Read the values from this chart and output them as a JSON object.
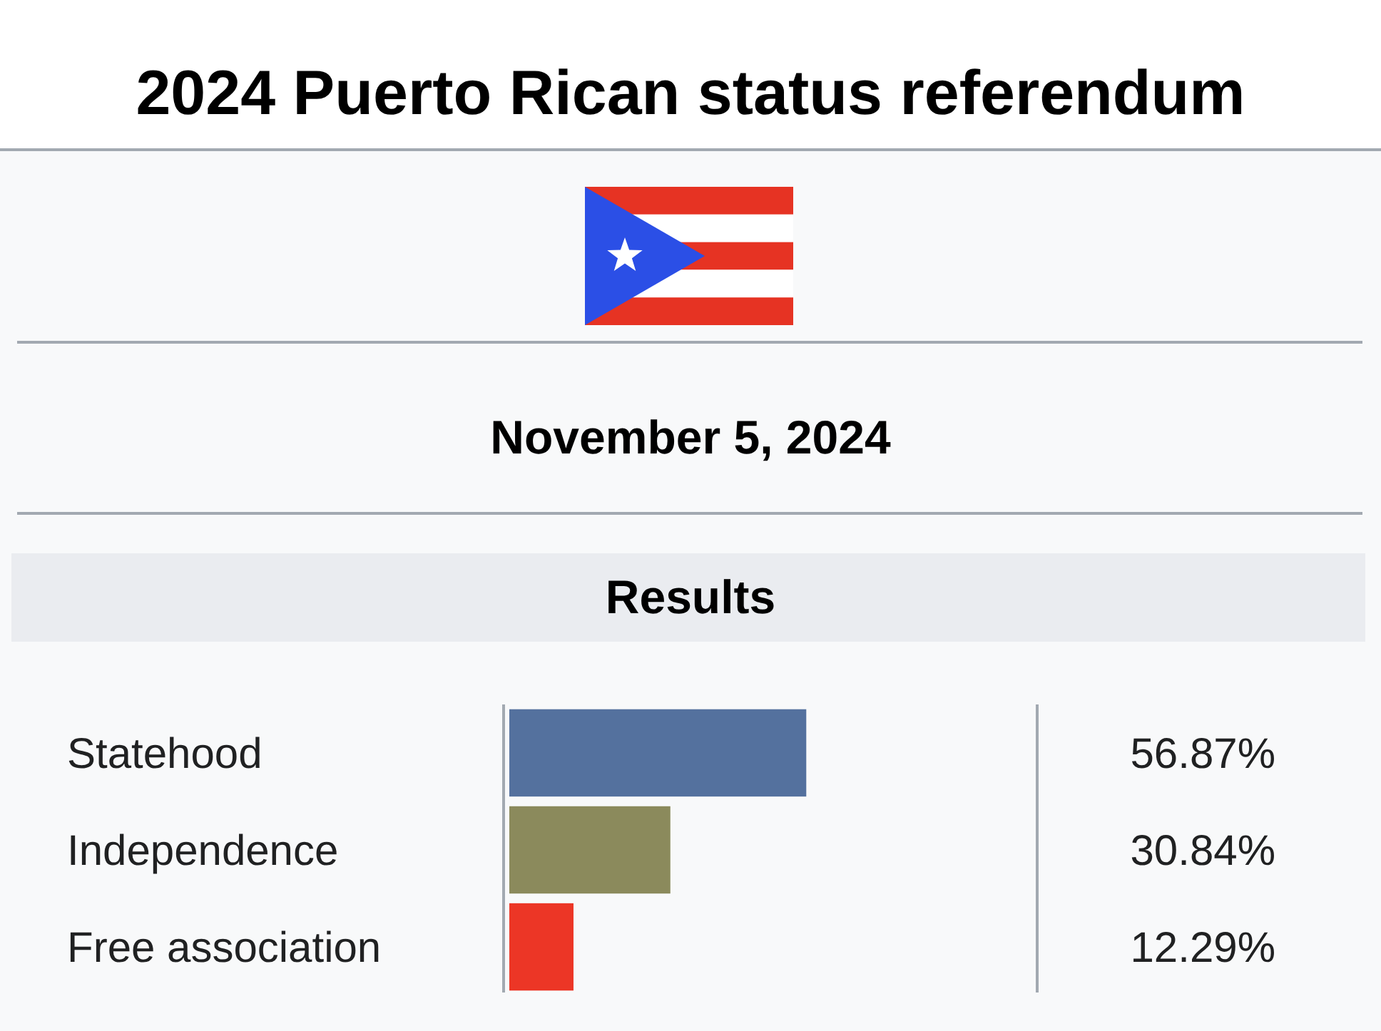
{
  "chart_data": {
    "type": "bar",
    "orientation": "horizontal",
    "title": "2024 Puerto Rican status referendum",
    "subtitle": "November 5, 2024",
    "annotations": [
      "Results"
    ],
    "categories": [
      "Statehood",
      "Independence",
      "Free association"
    ],
    "values": [
      56.87,
      30.84,
      12.29
    ],
    "colors": [
      "#54719e",
      "#8b8a5c",
      "#ec3626"
    ],
    "value_labels": [
      "56.87%",
      "30.84%",
      "12.29%"
    ],
    "tick_labels": "y"
  }
}
